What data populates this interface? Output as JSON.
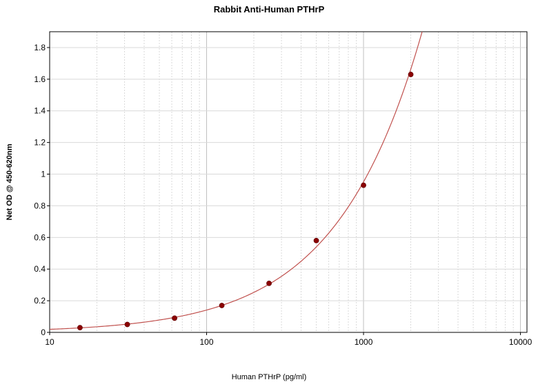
{
  "chart_data": {
    "type": "scatter",
    "title": "Rabbit Anti-Human PTHrP",
    "xlabel": "Human PTHrP (pg/ml)",
    "ylabel": "Net OD @ 450-620nm",
    "x_scale": "log",
    "xlim": [
      10,
      11000
    ],
    "ylim": [
      0,
      1.9
    ],
    "x_ticks": [
      10,
      100,
      1000,
      10000
    ],
    "y_ticks": [
      0,
      0.2,
      0.4,
      0.6,
      0.8,
      1,
      1.2,
      1.4,
      1.6,
      1.8
    ],
    "grid": true,
    "series": [
      {
        "points": [
          {
            "x": 15.6,
            "y": 0.03
          },
          {
            "x": 31.25,
            "y": 0.05
          },
          {
            "x": 62.5,
            "y": 0.09
          },
          {
            "x": 125,
            "y": 0.17
          },
          {
            "x": 250,
            "y": 0.31
          },
          {
            "x": 500,
            "y": 0.58
          },
          {
            "x": 1000,
            "y": 0.93
          },
          {
            "x": 2000,
            "y": 1.63
          }
        ],
        "fit_curve": true
      }
    ],
    "colors": {
      "points": "#8b0000",
      "curve": "#c0504d",
      "grid": "#d9d9d9",
      "axis": "#000000"
    }
  }
}
